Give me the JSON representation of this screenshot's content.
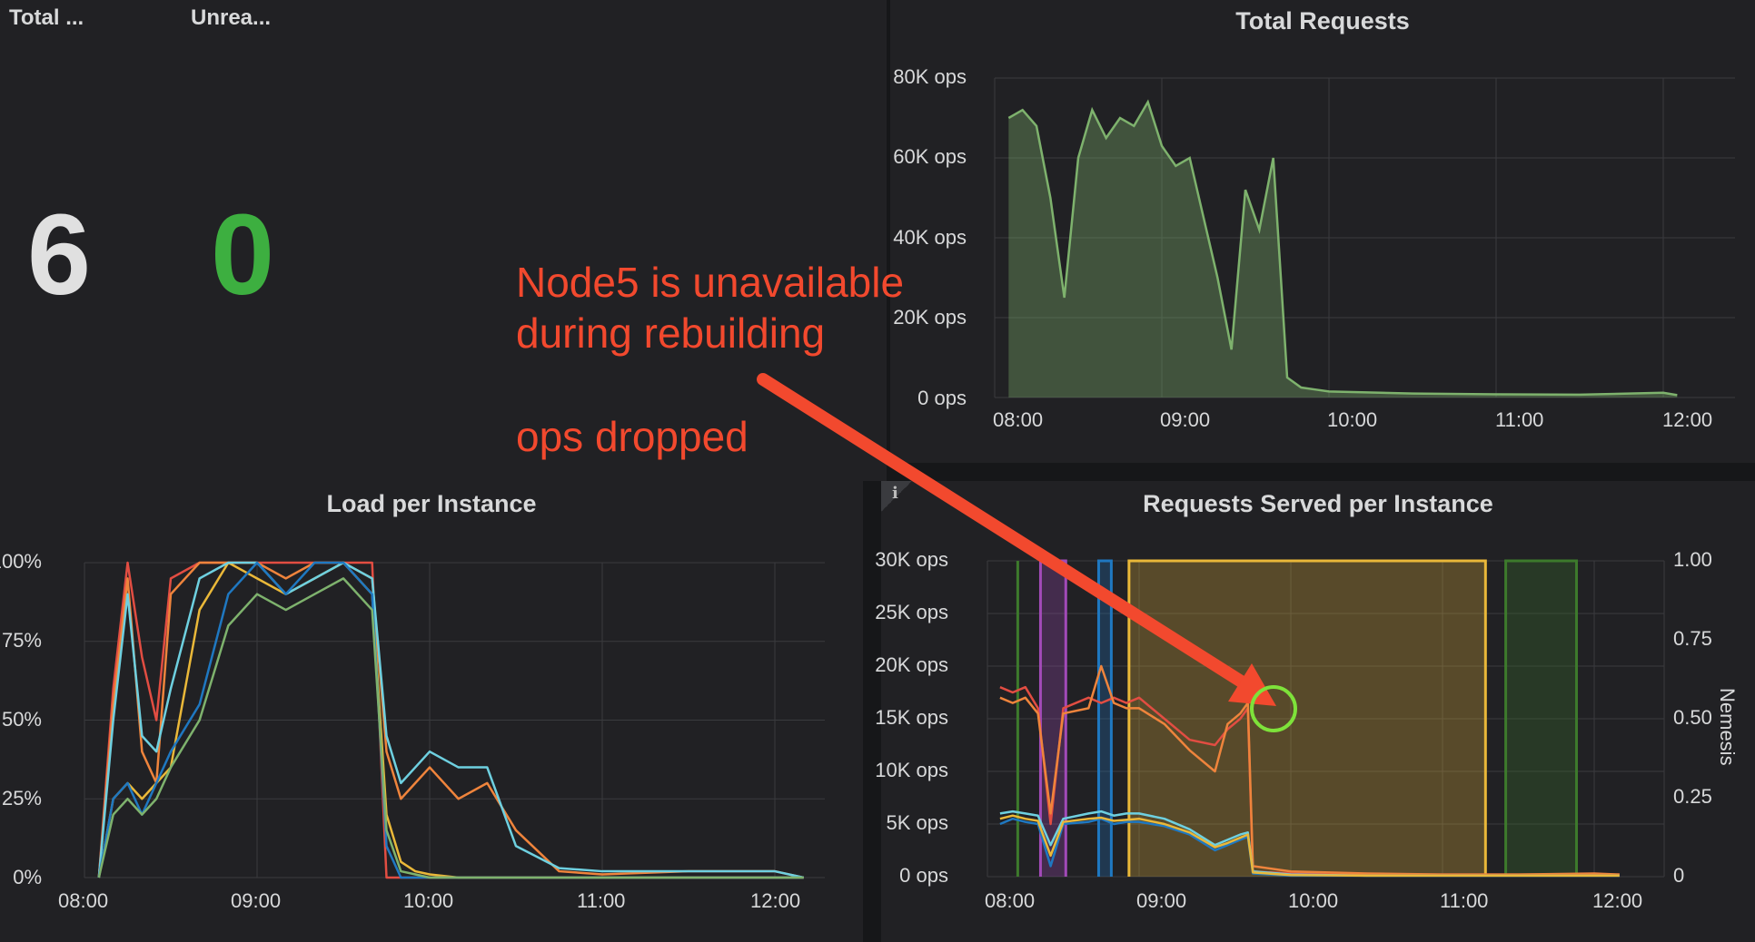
{
  "stats": [
    {
      "title": "Total ...",
      "value": "6",
      "color": "#e0e0e0"
    },
    {
      "title": "Unrea...",
      "value": "0",
      "color": "#3daf40"
    }
  ],
  "annotation": {
    "line1": "Node5 is unavailable",
    "line2": "during rebuilding",
    "line3": "ops dropped",
    "color": "#f2492e",
    "highlight_color": "#7ee23a"
  },
  "total_requests": {
    "title": "Total Requests",
    "y_ticks": [
      "80K ops",
      "60K ops",
      "40K ops",
      "20K ops",
      "0 ops"
    ],
    "x_ticks": [
      "08:00",
      "09:00",
      "10:00",
      "11:00",
      "12:00"
    ],
    "chart_data": {
      "type": "area",
      "title": "Total Requests",
      "ylim": [
        0,
        80000
      ],
      "xlim": [
        "08:00",
        "12:05"
      ],
      "series": [
        {
          "name": "total",
          "color": "#7eb26d",
          "x": [
            "08:05",
            "08:10",
            "08:15",
            "08:20",
            "08:25",
            "08:30",
            "08:35",
            "08:40",
            "08:45",
            "08:50",
            "08:55",
            "09:00",
            "09:05",
            "09:10",
            "09:15",
            "09:20",
            "09:25",
            "09:30",
            "09:35",
            "09:40",
            "09:45",
            "09:50",
            "09:55",
            "10:00",
            "10:30",
            "11:00",
            "11:30",
            "12:00",
            "12:05"
          ],
          "values": [
            70000,
            72000,
            68000,
            50000,
            25000,
            60000,
            72000,
            65000,
            70000,
            68000,
            74000,
            63000,
            58000,
            60000,
            45000,
            30000,
            12000,
            52000,
            42000,
            60000,
            5000,
            2500,
            2000,
            1500,
            1000,
            800,
            700,
            1200,
            600
          ]
        }
      ]
    }
  },
  "load_per_instance": {
    "title": "Load per Instance",
    "y_ticks": [
      "100%",
      "75%",
      "50%",
      "25%",
      "0%"
    ],
    "x_ticks": [
      "08:00",
      "09:00",
      "10:00",
      "11:00",
      "12:00"
    ],
    "chart_data": {
      "type": "line",
      "title": "Load per Instance",
      "ylim": [
        0,
        100
      ],
      "x": [
        "08:05",
        "08:10",
        "08:15",
        "08:20",
        "08:25",
        "08:30",
        "08:40",
        "08:50",
        "09:00",
        "09:10",
        "09:20",
        "09:30",
        "09:40",
        "09:45",
        "09:50",
        "09:55",
        "10:00",
        "10:10",
        "10:20",
        "10:30",
        "10:45",
        "11:00",
        "11:30",
        "12:00",
        "12:10"
      ],
      "series": [
        {
          "name": "red",
          "color": "#e24d42",
          "values": [
            0,
            60,
            100,
            70,
            50,
            95,
            100,
            100,
            100,
            100,
            100,
            100,
            100,
            0,
            0,
            0,
            0,
            0,
            0,
            0,
            0,
            0,
            0,
            0,
            0
          ]
        },
        {
          "name": "orange",
          "color": "#ef843c",
          "values": [
            0,
            55,
            95,
            40,
            30,
            90,
            100,
            100,
            100,
            95,
            100,
            100,
            95,
            40,
            25,
            30,
            35,
            25,
            30,
            15,
            2,
            1,
            2,
            2,
            0
          ]
        },
        {
          "name": "yellow",
          "color": "#eab839",
          "values": [
            0,
            25,
            30,
            25,
            30,
            35,
            85,
            100,
            95,
            90,
            95,
            100,
            90,
            20,
            5,
            2,
            1,
            0,
            0,
            0,
            0,
            0,
            0,
            0,
            0
          ]
        },
        {
          "name": "cyan",
          "color": "#6ed0e0",
          "values": [
            0,
            50,
            90,
            45,
            40,
            60,
            95,
            100,
            100,
            90,
            95,
            100,
            95,
            45,
            30,
            35,
            40,
            35,
            35,
            10,
            3,
            2,
            2,
            2,
            0
          ]
        },
        {
          "name": "blue",
          "color": "#1f78c1",
          "values": [
            0,
            25,
            30,
            20,
            30,
            40,
            55,
            90,
            100,
            90,
            100,
            100,
            90,
            10,
            0,
            0,
            0,
            0,
            0,
            0,
            0,
            0,
            0,
            0,
            0
          ]
        },
        {
          "name": "green",
          "color": "#7eb26d",
          "values": [
            0,
            20,
            25,
            20,
            25,
            35,
            50,
            80,
            90,
            85,
            90,
            95,
            85,
            15,
            2,
            1,
            0,
            0,
            0,
            0,
            0,
            0,
            0,
            0,
            0
          ]
        }
      ]
    }
  },
  "requests_served": {
    "title": "Requests Served per Instance",
    "info_icon": "i",
    "y_ticks": [
      "30K ops",
      "25K ops",
      "20K ops",
      "15K ops",
      "10K ops",
      "5K ops",
      "0 ops"
    ],
    "y2_ticks": [
      "1.00",
      "0.75",
      "0.50",
      "0.25",
      "0"
    ],
    "y2_label": "Nemesis",
    "x_ticks": [
      "08:00",
      "09:00",
      "10:00",
      "11:00",
      "12:00"
    ],
    "chart_data": {
      "type": "line",
      "title": "Requests Served per Instance",
      "ylim": [
        0,
        30000
      ],
      "y2lim": [
        0,
        1
      ],
      "y2label": "Nemesis",
      "x": [
        "08:05",
        "08:10",
        "08:15",
        "08:20",
        "08:25",
        "08:30",
        "08:40",
        "08:45",
        "08:50",
        "08:55",
        "09:00",
        "09:10",
        "09:20",
        "09:30",
        "09:35",
        "09:40",
        "09:43",
        "09:45",
        "10:00",
        "10:30",
        "11:00",
        "11:30",
        "12:00",
        "12:10"
      ],
      "series": [
        {
          "name": "red",
          "color": "#e24d42",
          "values": [
            18000,
            17500,
            18000,
            16000,
            5000,
            16000,
            17000,
            16500,
            17000,
            16500,
            17000,
            15000,
            13000,
            12500,
            14000,
            15000,
            16000,
            500,
            300,
            200,
            200,
            200,
            200,
            200
          ]
        },
        {
          "name": "orange",
          "color": "#ef843c",
          "values": [
            17000,
            16500,
            17000,
            15500,
            6000,
            15500,
            16000,
            20000,
            16500,
            16000,
            16000,
            14500,
            12000,
            10000,
            14500,
            15500,
            16500,
            1000,
            500,
            300,
            200,
            200,
            300,
            200
          ]
        },
        {
          "name": "cyan",
          "color": "#6ed0e0",
          "values": [
            6000,
            6200,
            6000,
            5800,
            3000,
            5500,
            6000,
            6200,
            5800,
            6000,
            6000,
            5500,
            4500,
            3000,
            3500,
            4000,
            4200,
            500,
            200,
            100,
            100,
            100,
            100,
            100
          ]
        },
        {
          "name": "blue",
          "color": "#1f78c1",
          "values": [
            5000,
            5500,
            5200,
            5000,
            1000,
            5000,
            5200,
            5500,
            5000,
            5200,
            5200,
            4800,
            4000,
            2500,
            3000,
            3500,
            3800,
            300,
            100,
            100,
            100,
            100,
            100,
            100
          ]
        },
        {
          "name": "yellow",
          "color": "#eab839",
          "values": [
            5500,
            5800,
            5500,
            5300,
            2000,
            5200,
            5500,
            5600,
            5300,
            5400,
            5500,
            5000,
            4200,
            2800,
            3200,
            3700,
            4000,
            400,
            150,
            100,
            100,
            100,
            100,
            100
          ]
        }
      ],
      "nemesis_bands": [
        {
          "name": "green",
          "color": "#3d7a2c",
          "start": "08:12",
          "end": "08:12",
          "value": 1
        },
        {
          "name": "magenta",
          "color": "#a24ab8",
          "start": "08:21",
          "end": "08:31",
          "value": 1
        },
        {
          "name": "blue",
          "color": "#1f78c1",
          "start": "08:44",
          "end": "08:49",
          "value": 1
        },
        {
          "name": "yellow",
          "color": "#eab839",
          "start": "08:56",
          "end": "11:17",
          "value": 1
        },
        {
          "name": "green",
          "color": "#3d7a2c",
          "start": "11:25",
          "end": "11:53",
          "value": 1
        }
      ]
    }
  }
}
